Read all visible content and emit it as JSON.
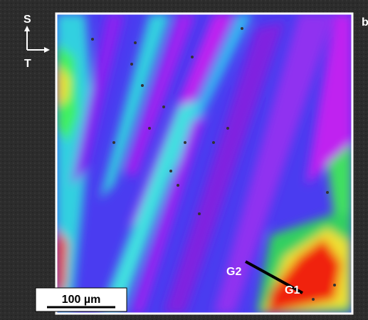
{
  "labels": {
    "panel": "b",
    "axis_s": "S",
    "axis_t": "T",
    "g1": "G1",
    "g2": "G2",
    "scale_bar": "100 µm"
  }
}
